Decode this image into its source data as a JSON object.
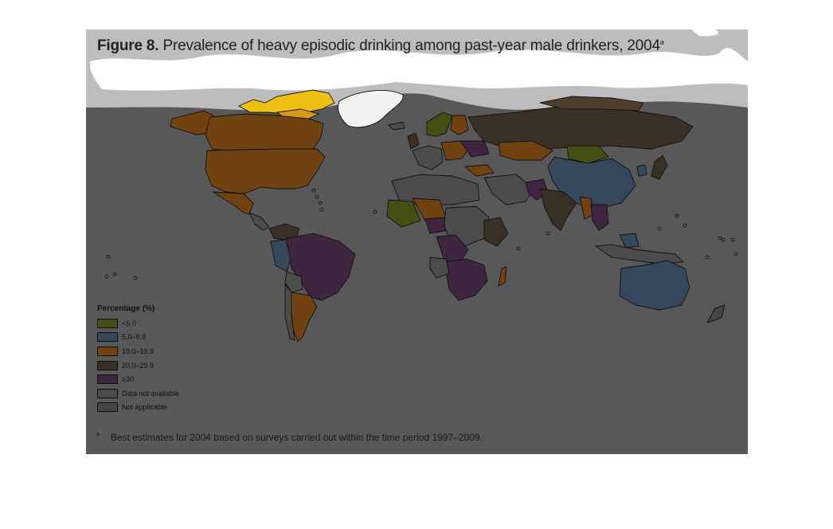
{
  "figure": {
    "label": "Figure 8.",
    "title": "Prevalence of heavy episodic drinking among past-year male drinkers, 2004",
    "title_superscript": "a"
  },
  "legend": {
    "title": "Percentage (%)",
    "items": [
      {
        "label": "<5.0",
        "color": "#454f14"
      },
      {
        "label": "5.0–9.9",
        "color": "#36495c"
      },
      {
        "label": "10.0–19.9",
        "color": "#70420f"
      },
      {
        "label": "20.0–29.9",
        "color": "#393126"
      },
      {
        "label": "≥30",
        "color": "#3e2640"
      },
      {
        "label": "Data not available",
        "color": "#4b4b4b"
      },
      {
        "label": "Not applicable",
        "color": "#454545"
      }
    ]
  },
  "colors": {
    "ocean": "#585858",
    "highlight": "#f0c010",
    "highlight_dark": "#d99a1a",
    "white_region": "#f2f2f2",
    "border": "#111111"
  },
  "footnote": {
    "mark": "a",
    "text": "Best estimates for 2004 based on surveys carried out within the time period 1997–2009."
  }
}
